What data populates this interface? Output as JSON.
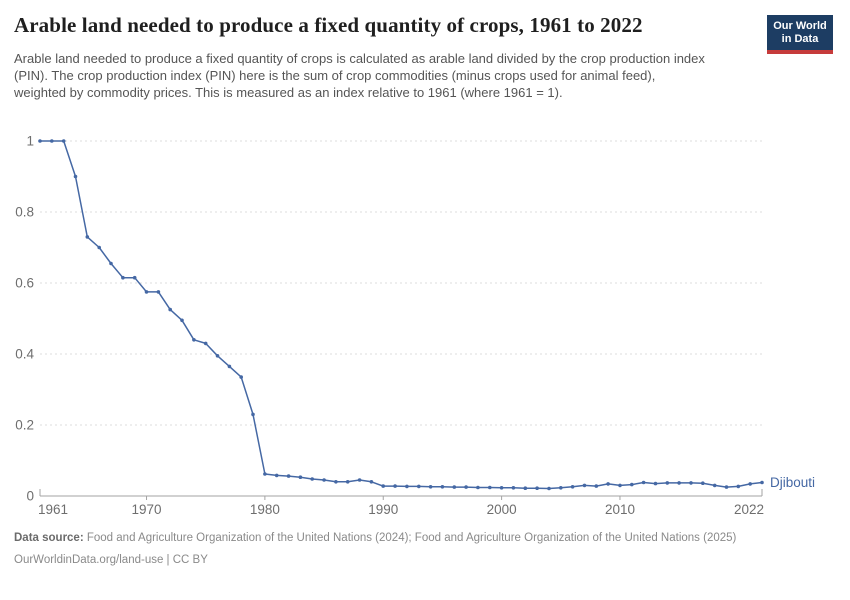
{
  "header": {
    "title": "Arable land needed to produce a fixed quantity of crops, 1961 to 2022",
    "subtitle": "Arable land needed to produce a fixed quantity of crops is calculated as arable land divided by the crop production index (PIN). The crop production index (PIN) here is the sum of crop commodities (minus crops used for animal feed), weighted by commodity prices. This is measured as an index relative to 1961 (where 1961 = 1).",
    "logo": {
      "line1": "Our World",
      "line2": "in Data"
    }
  },
  "chart_data": {
    "type": "line",
    "title": "Arable land needed to produce a fixed quantity of crops, 1961 to 2022",
    "xlabel": "",
    "ylabel": "",
    "xlim": [
      1961,
      2022
    ],
    "ylim": [
      0,
      1
    ],
    "x_ticks": [
      1961,
      1970,
      1980,
      1990,
      2000,
      2010,
      2022
    ],
    "y_ticks": [
      0,
      0.2,
      0.4,
      0.6,
      0.8,
      1
    ],
    "y_tick_labels": [
      "0",
      "0.2",
      "0.4",
      "0.6",
      "0.8",
      "1"
    ],
    "grid": "horizontal-dashed",
    "legend_position": "end-of-line",
    "series": [
      {
        "name": "Djibouti",
        "x": [
          1961,
          1962,
          1963,
          1964,
          1965,
          1966,
          1967,
          1968,
          1969,
          1970,
          1971,
          1972,
          1973,
          1974,
          1975,
          1976,
          1977,
          1978,
          1979,
          1980,
          1981,
          1982,
          1983,
          1984,
          1985,
          1986,
          1987,
          1988,
          1989,
          1990,
          1991,
          1992,
          1993,
          1994,
          1995,
          1996,
          1997,
          1998,
          1999,
          2000,
          2001,
          2002,
          2003,
          2004,
          2005,
          2006,
          2007,
          2008,
          2009,
          2010,
          2011,
          2012,
          2013,
          2014,
          2015,
          2016,
          2017,
          2018,
          2019,
          2020,
          2021,
          2022
        ],
        "values": [
          1.0,
          1.0,
          1.0,
          0.9,
          0.73,
          0.7,
          0.655,
          0.615,
          0.615,
          0.575,
          0.575,
          0.525,
          0.495,
          0.44,
          0.43,
          0.395,
          0.365,
          0.335,
          0.23,
          0.062,
          0.058,
          0.056,
          0.053,
          0.048,
          0.045,
          0.04,
          0.04,
          0.045,
          0.04,
          0.028,
          0.028,
          0.027,
          0.027,
          0.026,
          0.026,
          0.025,
          0.025,
          0.024,
          0.024,
          0.023,
          0.023,
          0.022,
          0.022,
          0.021,
          0.023,
          0.026,
          0.03,
          0.028,
          0.034,
          0.03,
          0.032,
          0.038,
          0.035,
          0.037,
          0.037,
          0.037,
          0.036,
          0.03,
          0.025,
          0.027,
          0.034,
          0.038
        ]
      }
    ]
  },
  "colors": {
    "line": "#4568a4",
    "grid": "#dcdcdc",
    "axis": "#a3a3a3",
    "tick_text": "#6e6e6e",
    "series_label": "#4568a4"
  },
  "footer": {
    "datasource_label": "Data source:",
    "datasource_text": " Food and Agriculture Organization of the United Nations (2024); Food and Agriculture Organization of the United Nations (2025)",
    "license_line": "OurWorldinData.org/land-use | CC BY"
  }
}
